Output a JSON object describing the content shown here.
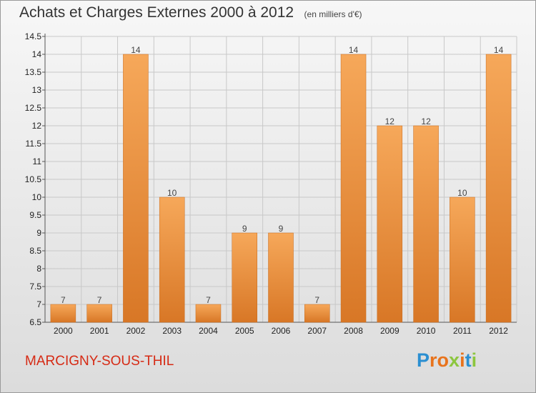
{
  "header": {
    "title": "Achats et Charges Externes 2000 à 2012",
    "subtitle": "(en milliers d'€)"
  },
  "footer": {
    "commune": "MARCIGNY-SOUS-THIL",
    "logo": "Proxiti"
  },
  "colors": {
    "bar_light": "#f6a85a",
    "bar_dark": "#d87726",
    "commune_text": "#d62a14",
    "logo_letters": [
      "#2b8fd1",
      "#e8731c",
      "#e8731c",
      "#8cc63f",
      "#e8731c",
      "#2b8fd1",
      "#8cc63f"
    ]
  },
  "chart_data": {
    "type": "bar",
    "categories": [
      "2000",
      "2001",
      "2002",
      "2003",
      "2004",
      "2005",
      "2006",
      "2007",
      "2008",
      "2009",
      "2010",
      "2011",
      "2012"
    ],
    "values": [
      7,
      7,
      14,
      10,
      7,
      9,
      9,
      7,
      14,
      12,
      12,
      10,
      14
    ],
    "data_labels": [
      "7",
      "7",
      "14",
      "10",
      "7",
      "9",
      "9",
      "7",
      "14",
      "12",
      "12",
      "10",
      "14"
    ],
    "ylim": [
      6.5,
      14.5
    ],
    "yticks": [
      "6.5",
      "7",
      "7.5",
      "8",
      "8.5",
      "9",
      "9.5",
      "10",
      "10.5",
      "11",
      "11.5",
      "12",
      "12.5",
      "13",
      "13.5",
      "14",
      "14.5"
    ],
    "grid": true,
    "legend": "none"
  }
}
